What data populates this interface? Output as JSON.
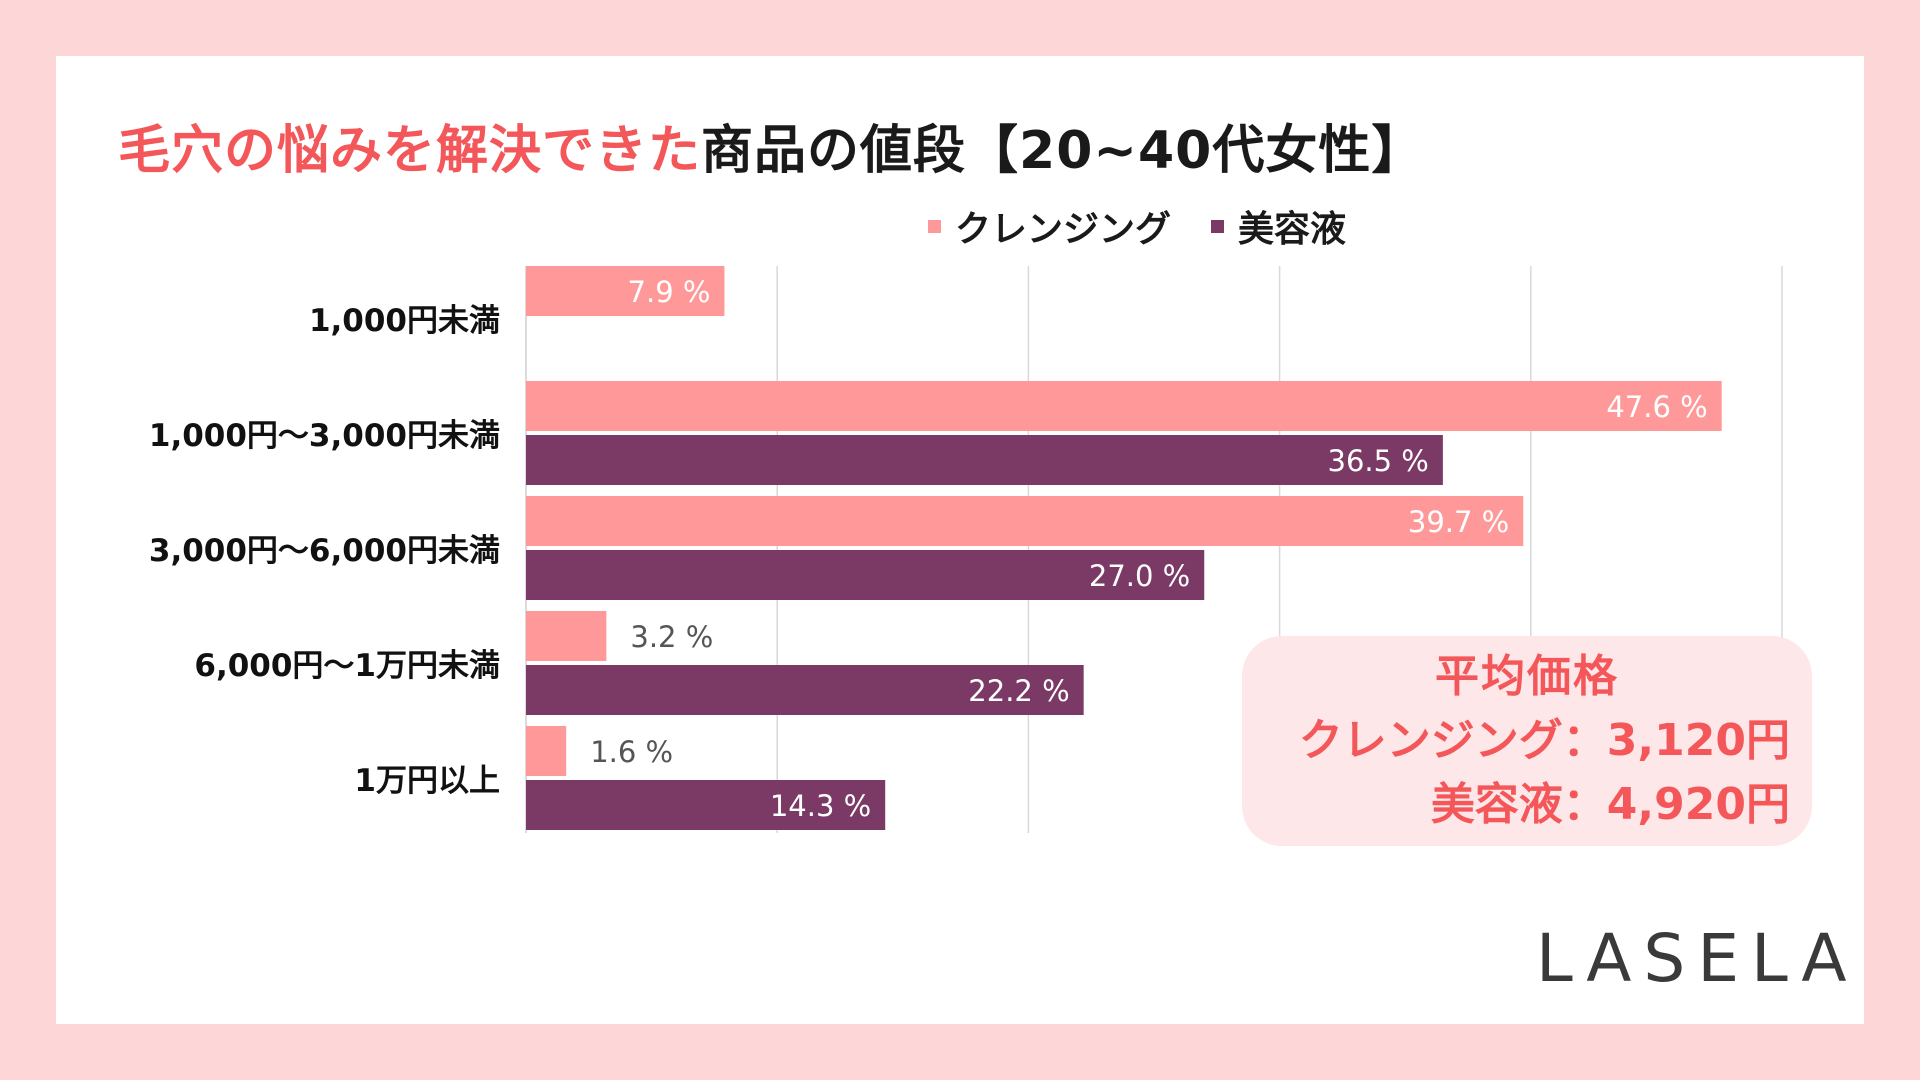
{
  "title": {
    "accent_text": "毛穴の悩みを解決できた",
    "main_text": "商品の値段【20~40代女性】"
  },
  "legend": {
    "items": [
      {
        "label": "クレンジング",
        "color": "#ff9999"
      },
      {
        "label": "美容液",
        "color": "#7b3a66"
      }
    ]
  },
  "average_box": {
    "title": "平均価格",
    "cleansing": "クレンジング：3,120円",
    "serum": "美容液：4,920円"
  },
  "logo": "LASELA",
  "colors": {
    "accent": "#f4575a",
    "cleansing": "#ff9999",
    "serum": "#7b3a66",
    "background": "#fdd6d8"
  },
  "chart_data": {
    "type": "bar",
    "orientation": "horizontal",
    "unit": "%",
    "xlim": [
      0,
      50
    ],
    "categories": [
      "1,000円未満",
      "1,000円～3,000円未満",
      "3,000円～6,000円未満",
      "6,000円～1万円未満",
      "1万円以上"
    ],
    "series": [
      {
        "name": "クレンジング",
        "values": [
          7.9,
          47.6,
          39.7,
          3.2,
          1.6
        ],
        "labels": [
          "7.9 %",
          "47.6 %",
          "39.7 %",
          "3.2 %",
          "1.6 %"
        ]
      },
      {
        "name": "美容液",
        "values": [
          null,
          36.5,
          27.0,
          22.2,
          14.3
        ],
        "labels": [
          "",
          "36.5 %",
          "27.0 %",
          "22.2 %",
          "14.3 %"
        ]
      }
    ],
    "grid": true,
    "legend_position": "top"
  }
}
